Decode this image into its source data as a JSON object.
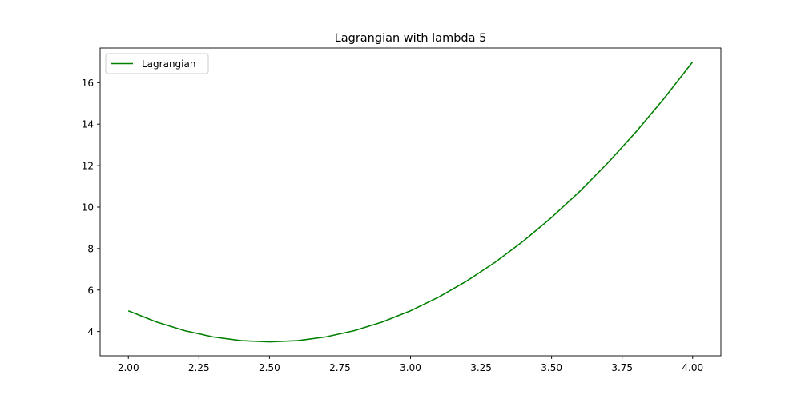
{
  "chart_data": {
    "type": "line",
    "title": "Lagrangian with lambda 5",
    "xlabel": "",
    "ylabel": "",
    "xlim": [
      1.9,
      4.1
    ],
    "ylim": [
      2.83,
      17.67
    ],
    "xticks": [
      2.0,
      2.25,
      2.5,
      2.75,
      3.0,
      3.25,
      3.5,
      3.75,
      4.0
    ],
    "xtick_labels": [
      "2.00",
      "2.25",
      "2.50",
      "2.75",
      "3.00",
      "3.25",
      "3.50",
      "3.75",
      "4.00"
    ],
    "yticks": [
      4,
      6,
      8,
      10,
      12,
      14,
      16
    ],
    "ytick_labels": [
      "4",
      "6",
      "8",
      "10",
      "12",
      "14",
      "16"
    ],
    "grid": false,
    "legend": {
      "position": "upper-left"
    },
    "series": [
      {
        "name": "Lagrangian",
        "color": "#008000",
        "x": [
          2.0,
          2.1,
          2.2,
          2.3,
          2.4,
          2.5,
          2.6,
          2.7,
          2.8,
          2.9,
          3.0,
          3.1,
          3.2,
          3.3,
          3.4,
          3.5,
          3.6,
          3.7,
          3.8,
          3.9,
          4.0
        ],
        "y": [
          5.0,
          4.46,
          4.04,
          3.74,
          3.56,
          3.5,
          3.56,
          3.74,
          4.04,
          4.46,
          5.0,
          5.66,
          6.44,
          7.34,
          8.36,
          9.5,
          10.76,
          12.14,
          13.64,
          15.26,
          17.0
        ]
      }
    ]
  }
}
